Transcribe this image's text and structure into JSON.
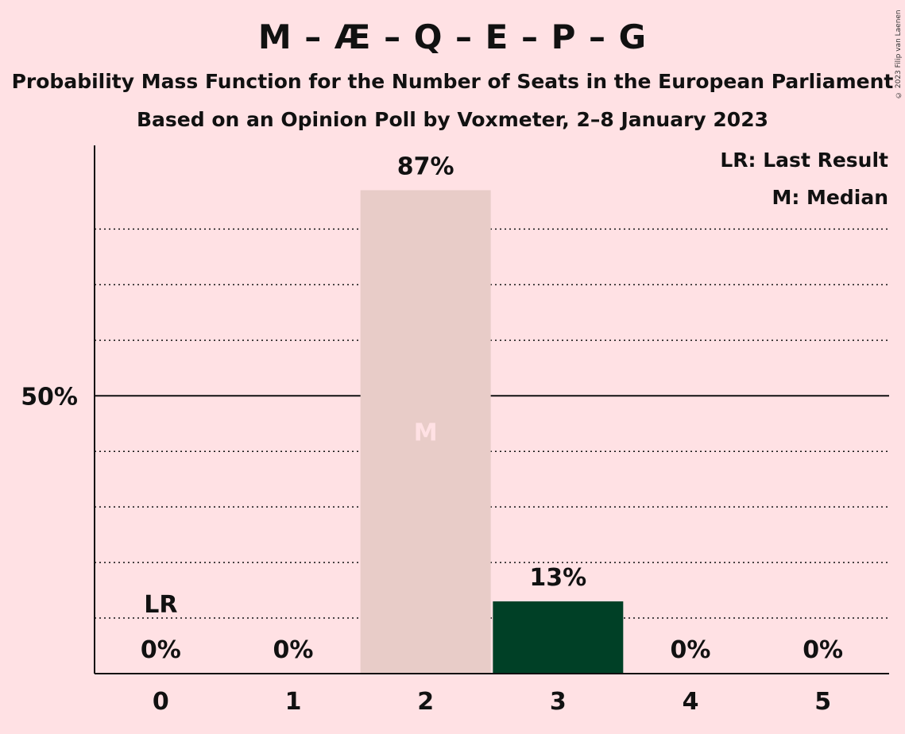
{
  "title": "M – Æ – Q – E – P – G",
  "subtitle": "Probability Mass Function for the Number of Seats in the European Parliament",
  "poll_line": "Based on an Opinion Poll by Voxmeter, 2–8 January 2023",
  "copyright": "© 2023 Filip van Laenen",
  "legend": {
    "last_result": "LR: Last Result",
    "median": "M: Median"
  },
  "colors": {
    "background": "#ffe1e4",
    "median_bar": "#e8ccc8",
    "bar": "#004026",
    "median_marker": "#ffe1e4"
  },
  "chart_data": {
    "type": "bar",
    "categories": [
      "0",
      "1",
      "2",
      "3",
      "4",
      "5"
    ],
    "values": [
      0,
      0,
      87,
      13,
      0,
      0
    ],
    "value_labels": [
      "0%",
      "0%",
      "87%",
      "13%",
      "0%",
      "0%"
    ],
    "ylim": [
      0,
      95
    ],
    "ytick_labels": [
      {
        "value": 50,
        "label": "50%"
      }
    ],
    "minor_gridlines": [
      10,
      20,
      30,
      40,
      60,
      70,
      80
    ],
    "grid": true,
    "last_result_category": "0",
    "last_result_marker": "LR",
    "median_category": "2",
    "median_marker": "M",
    "legend_position": "top-right"
  }
}
